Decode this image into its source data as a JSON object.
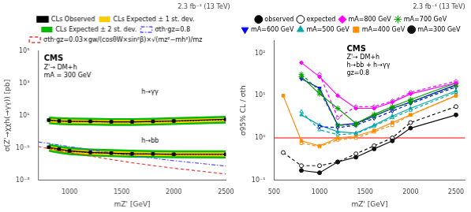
{
  "chart_data": [
    {
      "type": "line",
      "title": "2.3 fb⁻¹ (13 TeV)",
      "x_label": "mZ' [GeV]",
      "y_label": "σ(Z'→χχh(→γγ)) [pb]",
      "annotations": [
        [
          "CMS",
          "Z'→ DM+h",
          "mA = 300 GeV"
        ],
        [
          "h→bb"
        ],
        [
          "h→γγ"
        ]
      ],
      "log": "y",
      "grid": false,
      "legend": "top",
      "xlim": [
        700,
        2500
      ],
      "ylim": [
        0.001,
        100000
      ],
      "xticks": [
        1000,
        1500,
        2000,
        2500
      ],
      "yticks": [
        {
          "value": 0.001,
          "label": "10⁻³"
        },
        {
          "value": 0.1,
          "label": "10⁻¹"
        },
        {
          "value": 10,
          "label": "10¹"
        },
        {
          "value": 1000,
          "label": "10³"
        },
        {
          "value": 100000,
          "label": "10⁵"
        }
      ],
      "x": [
        800,
        900,
        1000,
        1200,
        1400,
        1600,
        1800,
        2000,
        2500
      ],
      "series": [
        {
          "name": "CLs Observed",
          "type": "line",
          "color": "#000000",
          "marker": "square",
          "line_style": "solid",
          "values": [
            5.2,
            4.6,
            4.4,
            4.3,
            4.1,
            4.1,
            4.3,
            4.6,
            5.8
          ]
        },
        {
          "name": "CLs Expected ± 1 st. dev.",
          "type": "band",
          "color": "#ffcc00",
          "low": [
            3.8,
            3.4,
            3.2,
            3.1,
            3.0,
            3.0,
            3.1,
            3.4,
            4.2
          ],
          "high": [
            6.5,
            6.0,
            5.7,
            5.5,
            5.3,
            5.3,
            5.5,
            5.9,
            7.2
          ]
        },
        {
          "name": "CLs Expected ± 2 st. dev.",
          "type": "band",
          "color": "#00bb00",
          "low": [
            2.9,
            2.6,
            2.5,
            2.4,
            2.3,
            2.3,
            2.4,
            2.6,
            3.2
          ],
          "high": [
            8.5,
            7.8,
            7.5,
            7.2,
            6.9,
            6.9,
            7.2,
            7.8,
            9.5
          ]
        },
        {
          "type": "line",
          "color": "#000000",
          "line_style": "dotted",
          "values": [
            5.0,
            4.5,
            4.3,
            4.2,
            4.0,
            4.0,
            4.2,
            4.5,
            5.5
          ]
        },
        {
          "type": "line",
          "color": "#000000",
          "marker": "square",
          "line_style": "solid",
          "values": [
            0.11,
            0.083,
            0.065,
            0.052,
            0.047,
            0.043,
            0.042,
            0.04,
            0.04
          ]
        },
        {
          "type": "band",
          "color": "#ffcc00",
          "low": [
            0.076,
            0.058,
            0.047,
            0.038,
            0.035,
            0.032,
            0.031,
            0.03,
            0.029
          ],
          "high": [
            0.135,
            0.103,
            0.083,
            0.068,
            0.062,
            0.057,
            0.055,
            0.053,
            0.053
          ]
        },
        {
          "type": "band",
          "color": "#00bb00",
          "low": [
            0.058,
            0.044,
            0.036,
            0.029,
            0.027,
            0.025,
            0.024,
            0.023,
            0.022
          ],
          "high": [
            0.18,
            0.138,
            0.112,
            0.091,
            0.083,
            0.076,
            0.073,
            0.07,
            0.07
          ]
        },
        {
          "type": "line",
          "color": "#000000",
          "line_style": "dotted",
          "values": [
            0.1,
            0.077,
            0.062,
            0.05,
            0.046,
            0.042,
            0.041,
            0.039,
            0.039
          ]
        },
        {
          "name": "σth·gz=0.8",
          "type": "line",
          "color": "#5555ff",
          "line_style": "dash_dot",
          "x": [
            700,
            800,
            900,
            1000,
            1200,
            1400,
            1600,
            1800,
            2000,
            2500
          ],
          "values": [
            0.23,
            0.19,
            0.15,
            0.12,
            0.075,
            0.049,
            0.033,
            0.023,
            0.016,
            0.0075
          ]
        },
        {
          "name": "σth·gz=0.03×gw/(cosθW×sin²β)×√(mz²−mh²)/mz",
          "type": "line",
          "color": "#ee3333",
          "line_style": "dashed",
          "x": [
            700,
            800,
            900,
            1000,
            1200,
            1400,
            1600,
            1800,
            2000,
            2500
          ],
          "values": [
            0.12,
            0.09,
            0.067,
            0.051,
            0.031,
            0.019,
            0.012,
            0.008,
            0.0055,
            0.0024
          ]
        }
      ]
    },
    {
      "type": "line",
      "title": "2.3 fb⁻¹ (13 TeV)",
      "x_label": "mZ' [GeV]",
      "y_label": "σ95% CL / σth",
      "annotations": [
        [
          "CMS",
          "Z'→ DM+h",
          "h→bb + h→γγ",
          "gz=0.8"
        ]
      ],
      "log": "y",
      "grid": false,
      "legend": "top",
      "xlim": [
        500,
        2600
      ],
      "ylim": [
        0.1,
        200
      ],
      "xticks": [
        500,
        1000,
        1500,
        2000,
        2500
      ],
      "yticks": [
        {
          "value": 0.1,
          "label": "10⁻¹"
        },
        {
          "value": 1,
          "label": "10⁰"
        },
        {
          "value": 10,
          "label": "10¹"
        },
        {
          "value": 100,
          "label": "10²"
        }
      ],
      "hline": {
        "value": 1,
        "color": "#ff0000"
      },
      "legend_entries": [
        {
          "name": "observed",
          "color": "#000000",
          "marker": "circle",
          "line_style": "solid"
        },
        {
          "name": "expected",
          "color": "#000000",
          "marker": "circle",
          "line_style": "dashed"
        }
      ],
      "x": [
        600,
        800,
        1000,
        1200,
        1400,
        1600,
        1800,
        2000,
        2500
      ],
      "series": [
        {
          "name": "mA=800 GeV",
          "type": "line",
          "color": "#ff00ff",
          "marker": "diamond",
          "line_style": "solid",
          "values": [
            null,
            60,
            28,
            10,
            5.0,
            5.0,
            7.0,
            11,
            20.0
          ]
        },
        {
          "type": "line",
          "color": "#ff00ff",
          "marker": "diamond",
          "line_style": "dashed",
          "values": [
            null,
            null,
            32,
            3.0,
            5.5,
            5.5,
            7.5,
            12,
            22.0
          ]
        },
        {
          "name": "mA=700 GeV",
          "type": "line",
          "color": "#009900",
          "marker": "star",
          "line_style": "solid",
          "values": [
            null,
            28,
            11,
            5.0,
            2.2,
            3.6,
            5.5,
            8.0,
            20.0
          ]
        },
        {
          "type": "line",
          "color": "#009900",
          "marker": "star",
          "line_style": "dashed",
          "values": [
            null,
            32,
            13,
            2.0,
            2.0,
            3.3,
            5.0,
            7.0,
            17.0
          ]
        },
        {
          "name": "mA=600 GeV",
          "type": "line",
          "color": "#0000ee",
          "marker": "triangle_down",
          "line_style": "solid",
          "values": [
            null,
            25,
            15,
            2.0,
            2.2,
            3.3,
            5.0,
            7.0,
            18.0
          ]
        },
        {
          "type": "line",
          "color": "#0000ee",
          "marker": "triangle_down",
          "line_style": "dashed",
          "values": [
            null,
            null,
            1.85,
            1.75,
            2.0,
            2.9,
            4.3,
            6.5,
            16.0
          ]
        },
        {
          "name": "mA=500 GeV",
          "type": "line",
          "color": "#00aaaa",
          "marker": "triangle_up",
          "line_style": "solid",
          "values": [
            null,
            3.5,
            2.0,
            1.4,
            1.3,
            2.0,
            3.3,
            5.0,
            13.0
          ]
        },
        {
          "type": "line",
          "color": "#00aaaa",
          "marker": "triangle_up",
          "line_style": "dashed",
          "values": [
            null,
            4.2,
            1.55,
            1.2,
            1.25,
            1.9,
            3.0,
            4.5,
            12.0
          ]
        },
        {
          "name": "mA=400 GeV",
          "type": "line",
          "color": "#ff8c00",
          "marker": "square",
          "line_style": "solid",
          "values": [
            10.0,
            0.85,
            0.65,
            1.0,
            1.1,
            1.5,
            2.3,
            3.5,
            10.0
          ]
        },
        {
          "type": "line",
          "color": "#ff8c00",
          "marker": "square",
          "line_style": "dashed",
          "values": [
            null,
            0.75,
            0.62,
            0.9,
            1.0,
            1.4,
            2.0,
            3.5,
            10.0
          ]
        },
        {
          "name": "mA=300 GeV",
          "type": "line",
          "color": "#111111",
          "marker": "circle",
          "line_style": "solid",
          "values": [
            null,
            0.17,
            0.15,
            0.27,
            0.35,
            0.55,
            0.85,
            1.7,
            3.5
          ]
        },
        {
          "type": "line",
          "color": "#111111",
          "marker": "circle",
          "line_style": "dashed",
          "values": [
            0.45,
            0.22,
            0.22,
            0.27,
            0.42,
            0.65,
            1.0,
            2.3,
            5.5
          ]
        }
      ]
    }
  ]
}
